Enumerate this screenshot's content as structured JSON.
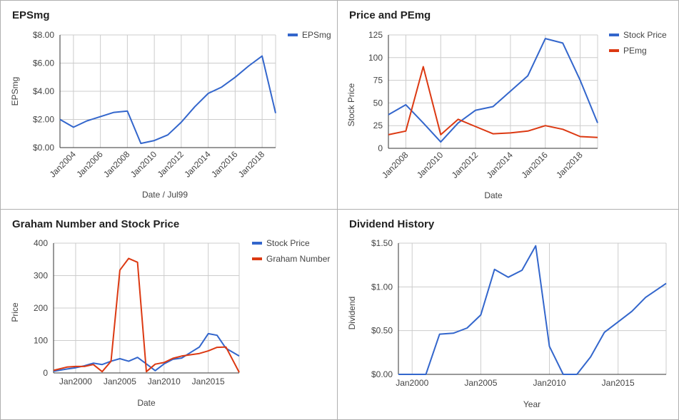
{
  "colors": {
    "blue": "#3366cc",
    "red": "#dc3912",
    "grid": "#cccccc",
    "axis": "#333333",
    "text": "#444444"
  },
  "chart_data": [
    {
      "id": "eps",
      "type": "line",
      "title": "EPSmg",
      "xlabel": "Date / Jul99",
      "ylabel": "EPSmg",
      "legend": "right",
      "xlim": [
        2003,
        2019
      ],
      "ylim": [
        0,
        8
      ],
      "yticks": [
        0,
        2,
        4,
        6,
        8
      ],
      "ytick_labels": [
        "$0.00",
        "$2.00",
        "$4.00",
        "$6.00",
        "$8.00"
      ],
      "xticks": [
        2004,
        2006,
        2008,
        2010,
        2012,
        2014,
        2016,
        2018
      ],
      "xtick_labels": [
        "Jan2004",
        "Jan2006",
        "Jan2008",
        "Jan2010",
        "Jan2012",
        "Jan2014",
        "Jan2016",
        "Jan2018"
      ],
      "xtick_rotate": true,
      "grid": true,
      "series": [
        {
          "name": "EPSmg",
          "color": "#3366cc",
          "x": [
            2003,
            2004,
            2005,
            2006,
            2007,
            2008,
            2009,
            2010,
            2011,
            2012,
            2013,
            2014,
            2015,
            2016,
            2017,
            2018,
            2019
          ],
          "y": [
            2.0,
            1.45,
            1.9,
            2.2,
            2.5,
            2.6,
            0.3,
            0.5,
            0.9,
            1.8,
            2.9,
            3.85,
            4.3,
            5.0,
            5.8,
            6.5,
            2.45
          ]
        }
      ]
    },
    {
      "id": "pe",
      "type": "line",
      "title": "Price and PEmg",
      "xlabel": "Date",
      "ylabel": "Stock Price",
      "legend": "right",
      "xlim": [
        2007,
        2019
      ],
      "ylim": [
        0,
        125
      ],
      "yticks": [
        0,
        25,
        50,
        75,
        100,
        125
      ],
      "ytick_labels": [
        "0",
        "25",
        "50",
        "75",
        "100",
        "125"
      ],
      "xticks": [
        2008,
        2010,
        2012,
        2014,
        2016,
        2018
      ],
      "xtick_labels": [
        "Jan2008",
        "Jan2010",
        "Jan2012",
        "Jan2014",
        "Jan2016",
        "Jan2018"
      ],
      "xtick_rotate": true,
      "grid": true,
      "series": [
        {
          "name": "Stock Price",
          "color": "#3366cc",
          "x": [
            2007,
            2008,
            2009,
            2010,
            2011,
            2012,
            2013,
            2014,
            2015,
            2016,
            2017,
            2018,
            2019
          ],
          "y": [
            37,
            48,
            28,
            7,
            28,
            42,
            46,
            63,
            80,
            121,
            116,
            75,
            28
          ]
        },
        {
          "name": "PEmg",
          "color": "#dc3912",
          "x": [
            2007,
            2008,
            2009,
            2010,
            2011,
            2012,
            2013,
            2014,
            2015,
            2016,
            2017,
            2018,
            2019
          ],
          "y": [
            15,
            19,
            90,
            15,
            32,
            24,
            16,
            17,
            19,
            25,
            21,
            13,
            12
          ]
        }
      ]
    },
    {
      "id": "graham",
      "type": "line",
      "title": "Graham Number and Stock Price",
      "xlabel": "Date",
      "ylabel": "Price",
      "legend": "right",
      "xlim": [
        1997.5,
        2018.5
      ],
      "ylim": [
        0,
        400
      ],
      "yticks": [
        0,
        100,
        200,
        300,
        400
      ],
      "ytick_labels": [
        "0",
        "100",
        "200",
        "300",
        "400"
      ],
      "xticks": [
        2000,
        2005,
        2010,
        2015
      ],
      "xtick_labels": [
        "Jan2000",
        "Jan2005",
        "Jan2010",
        "Jan2015"
      ],
      "xtick_rotate": false,
      "grid": true,
      "series": [
        {
          "name": "Stock Price",
          "color": "#3366cc",
          "x": [
            1997.5,
            1999,
            2000,
            2001,
            2002,
            2003,
            2004,
            2005,
            2006,
            2007,
            2008,
            2009,
            2010,
            2011,
            2012,
            2013,
            2014,
            2015,
            2016,
            2017,
            2018.5
          ],
          "y": [
            5,
            12,
            16,
            22,
            30,
            26,
            36,
            44,
            36,
            48,
            28,
            7,
            28,
            42,
            46,
            63,
            80,
            121,
            116,
            76,
            52
          ]
        },
        {
          "name": "Graham Number",
          "color": "#dc3912",
          "x": [
            1997.5,
            1999,
            2000,
            2001,
            2002,
            2003,
            2004,
            2005,
            2006,
            2007,
            2008,
            2009,
            2010,
            2011,
            2012,
            2013,
            2014,
            2015,
            2016,
            2017,
            2018.5
          ],
          "y": [
            8,
            18,
            20,
            20,
            26,
            4,
            36,
            317,
            353,
            341,
            4,
            27,
            32,
            45,
            52,
            56,
            60,
            68,
            79,
            80,
            2
          ]
        }
      ]
    },
    {
      "id": "dividend",
      "type": "line",
      "title": "Dividend History",
      "xlabel": "Year",
      "ylabel": "Dividend",
      "legend": "none",
      "xlim": [
        1999,
        2018.5
      ],
      "ylim": [
        0,
        1.5
      ],
      "yticks": [
        0,
        0.5,
        1.0,
        1.5
      ],
      "ytick_labels": [
        "$0.00",
        "$0.50",
        "$1.00",
        "$1.50"
      ],
      "xticks": [
        2000,
        2005,
        2010,
        2015
      ],
      "xtick_labels": [
        "Jan2000",
        "Jan2005",
        "Jan2010",
        "Jan2015"
      ],
      "xtick_rotate": false,
      "grid": true,
      "series": [
        {
          "name": "",
          "color": "#3366cc",
          "x": [
            1999,
            2001,
            2002,
            2003,
            2004,
            2005,
            2006,
            2007,
            2008,
            2009,
            2010,
            2011,
            2012,
            2013,
            2014,
            2015,
            2016,
            2017,
            2018.5
          ],
          "y": [
            0,
            0,
            0.46,
            0.47,
            0.53,
            0.68,
            1.2,
            1.11,
            1.19,
            1.47,
            0.32,
            0,
            0,
            0.2,
            0.48,
            0.6,
            0.72,
            0.88,
            1.04
          ]
        }
      ]
    }
  ]
}
